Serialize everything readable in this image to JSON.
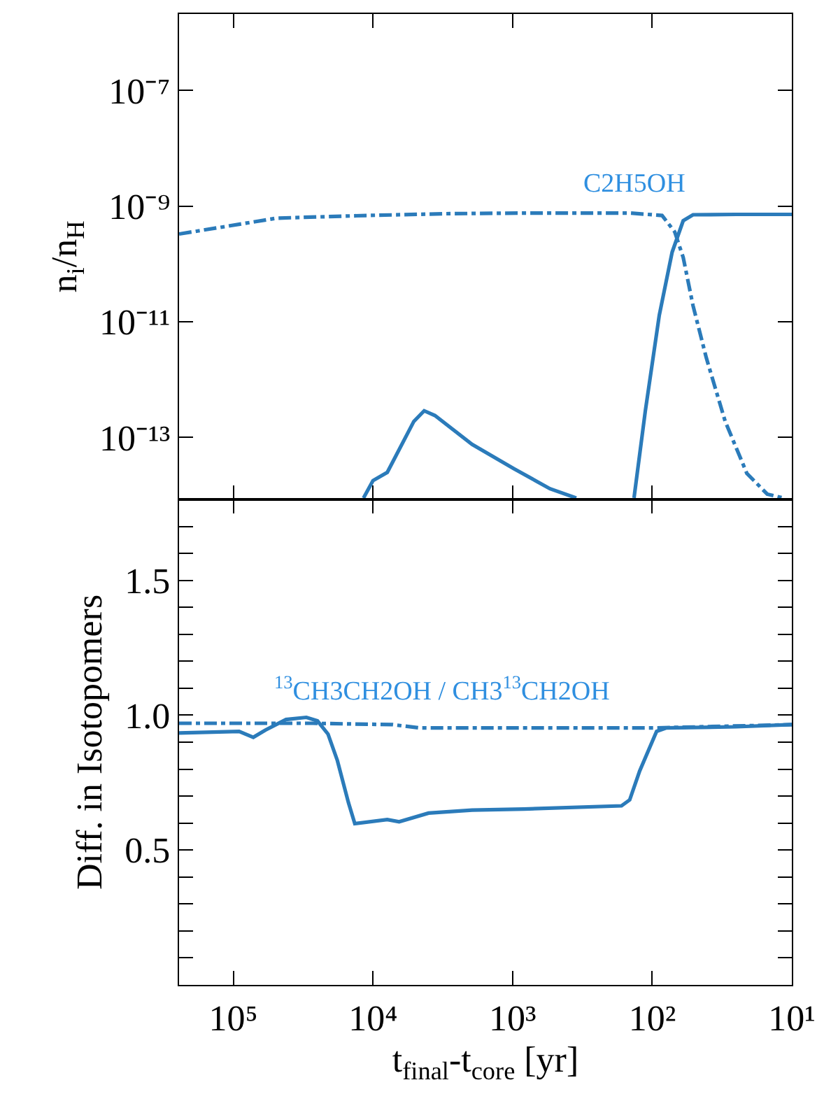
{
  "chart_data": [
    {
      "type": "line",
      "ylabel": "n$_{i}$/n$_{H}$",
      "log": "xy",
      "tick_labels": "y",
      "marker": "none",
      "annotations": [
        "C2H5OH"
      ],
      "xlim": [
        245000,
        10
      ],
      "xticks": [
        {
          "value": 100000,
          "label": null
        },
        {
          "value": 10000,
          "label": null
        },
        {
          "value": 1000,
          "label": null
        },
        {
          "value": 100,
          "label": null
        },
        {
          "value": 10,
          "label": null
        }
      ],
      "ylim": [
        8.5e-15,
        2.1e-06
      ],
      "yticks": [
        {
          "value": 1e-07,
          "label": "10⁻⁷"
        },
        {
          "value": 1e-09,
          "label": "10⁻⁹"
        },
        {
          "value": 1e-11,
          "label": "10⁻¹¹"
        },
        {
          "value": 1e-13,
          "label": "10⁻¹³"
        }
      ],
      "series": [
        {
          "color": "#2b7bba",
          "line_style": "solid",
          "x": [
            11700,
            10000,
            7900,
            5100,
            4300,
            3600,
            1950,
            980,
            540,
            350,
            250,
            135,
            112,
            89,
            72,
            60,
            51,
            25,
            10
          ],
          "values": [
            9e-15,
            1.8e-14,
            2.5e-14,
            1.9e-13,
            2.9e-13,
            2.4e-13,
            7.6e-14,
            2.9e-14,
            1.3e-14,
            9e-15,
            null,
            9e-15,
            2.9e-13,
            1.3e-11,
            1.6e-10,
            5.6e-10,
            7.1e-10,
            7.2e-10,
            7.2e-10
          ]
        },
        {
          "color": "#2b7bba",
          "line_style": "dashdot",
          "x": [
            245000,
            117000,
            49000,
            11200,
            3000,
            830,
            145,
            85,
            69,
            60,
            51,
            41,
            30,
            21,
            15,
            11.5
          ],
          "values": [
            3.3e-10,
            4.4e-10,
            6.2e-10,
            6.9e-10,
            7.4e-10,
            7.6e-10,
            7.6e-10,
            6.9e-10,
            3.6e-10,
            1.3e-10,
            1.9e-11,
            2.4e-12,
            1.9e-13,
            2.4e-14,
            1.05e-14,
            9e-15
          ]
        }
      ]
    },
    {
      "type": "line",
      "xlabel": "t$_{final}$-t$_{core}$ [yr]",
      "ylabel": "Diff. in Isotopomers",
      "log": "x",
      "marker": "none",
      "annotations": [
        "$^{13}$CH3CH2OH / CH3$^{13}$CH2OH"
      ],
      "xlim": [
        245000,
        10
      ],
      "xticks": [
        {
          "value": 100000,
          "label": "10⁵"
        },
        {
          "value": 10000,
          "label": "10⁴"
        },
        {
          "value": 1000,
          "label": "10³"
        },
        {
          "value": 100,
          "label": "10²"
        },
        {
          "value": 10,
          "label": "10¹"
        }
      ],
      "ylim": [
        0,
        1.8
      ],
      "yticks": [
        {
          "value": 0.1,
          "label": null
        },
        {
          "value": 0.2,
          "label": null
        },
        {
          "value": 0.3,
          "label": null
        },
        {
          "value": 0.4,
          "label": null
        },
        0.5,
        {
          "value": 0.6,
          "label": null
        },
        {
          "value": 0.7,
          "label": null
        },
        {
          "value": 0.8,
          "label": null
        },
        {
          "value": 0.9,
          "label": null
        },
        {
          "value": 1.0,
          "label": "1.0"
        },
        {
          "value": 1.1,
          "label": null
        },
        {
          "value": 1.2,
          "label": null
        },
        {
          "value": 1.3,
          "label": null
        },
        {
          "value": 1.4,
          "label": null
        },
        1.5,
        {
          "value": 1.6,
          "label": null
        },
        {
          "value": 1.7,
          "label": null
        }
      ],
      "series": [
        {
          "color": "#2b7bba",
          "line_style": "solid",
          "x": [
            245000,
            91000,
            72000,
            59000,
            42000,
            30000,
            25000,
            21000,
            18000,
            15000,
            13500,
            7900,
            6500,
            4000,
            1950,
            830,
            166,
            145,
            123,
            93,
            79,
            25,
            10
          ],
          "values": [
            0.934,
            0.94,
            0.918,
            0.945,
            0.984,
            0.992,
            0.979,
            0.93,
            0.832,
            0.676,
            0.598,
            0.613,
            0.605,
            0.637,
            0.648,
            0.652,
            0.664,
            0.686,
            0.793,
            0.94,
            0.953,
            0.957,
            0.965
          ]
        },
        {
          "color": "#2b7bba",
          "line_style": "dashdot",
          "x": [
            245000,
            27000,
            7200,
            4700,
            830,
            93,
            10
          ],
          "values": [
            0.97,
            0.97,
            0.965,
            0.953,
            0.953,
            0.953,
            0.965
          ]
        }
      ]
    }
  ]
}
